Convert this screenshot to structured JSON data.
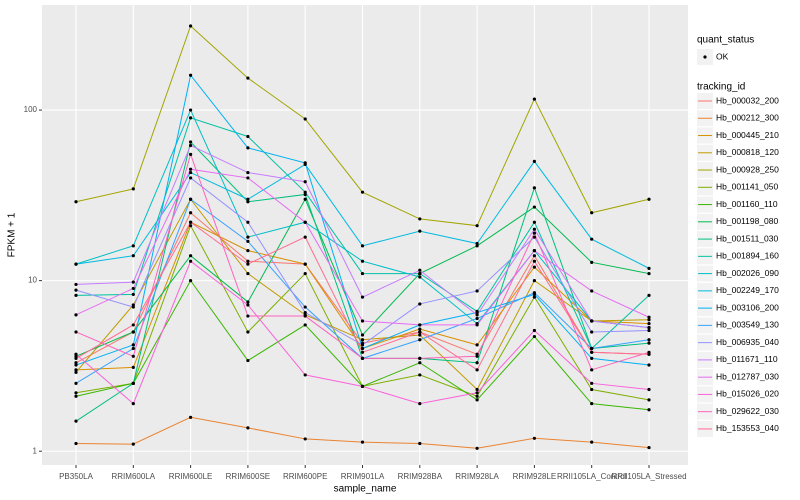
{
  "chart_data": {
    "type": "line",
    "x_label": "sample_name",
    "y_label": "FPKM + 1",
    "log_y": true,
    "grid": true,
    "ylim": [
      0.83,
      413
    ],
    "yticks": [
      1,
      10,
      100
    ],
    "categories": [
      "PB350LA",
      "RRIM600LA",
      "RRIM600LE",
      "RRIM600SE",
      "RRIM600PE",
      "RRIM901LA",
      "RRIM928BA",
      "RRIM928LA",
      "RRIM928LE",
      "RRII105LA_Control",
      "RRII105LA_Stressed"
    ],
    "shape_legend": {
      "title": "quant_status",
      "entries": [
        "OK"
      ]
    },
    "legend_title": "tracking_id",
    "series": [
      {
        "name": "Hb_000032_200",
        "color": "#F8766D",
        "values": [
          3.3,
          5.0,
          25,
          13,
          12.5,
          4.3,
          5.0,
          3.7,
          14,
          3.8,
          3.7
        ]
      },
      {
        "name": "Hb_000212_300",
        "color": "#EA8331",
        "values": [
          1.11,
          1.1,
          1.58,
          1.37,
          1.18,
          1.13,
          1.11,
          1.04,
          1.19,
          1.13,
          1.05
        ]
      },
      {
        "name": "Hb_000445_210",
        "color": "#D89000",
        "values": [
          3.0,
          3.1,
          22,
          15,
          12.5,
          4.0,
          5.2,
          4.2,
          12,
          5.8,
          5.6
        ]
      },
      {
        "name": "Hb_000818_120",
        "color": "#C09B00",
        "values": [
          2.9,
          7.2,
          30,
          11,
          6.3,
          4.5,
          4.8,
          2.3,
          10,
          5.8,
          5.9
        ]
      },
      {
        "name": "Hb_000928_250",
        "color": "#A3A500",
        "values": [
          29,
          34.5,
          311,
          154,
          88.6,
          33,
          23,
          21,
          116,
          25,
          30
        ]
      },
      {
        "name": "Hb_001141_050",
        "color": "#7CAE00",
        "values": [
          2.2,
          2.5,
          21,
          5.0,
          11,
          2.4,
          2.8,
          2.1,
          8.0,
          2.3,
          2.0
        ]
      },
      {
        "name": "Hb_001160_110",
        "color": "#39B600",
        "values": [
          2.1,
          2.5,
          10,
          3.4,
          5.5,
          2.4,
          3.3,
          2.0,
          4.7,
          1.9,
          1.75
        ]
      },
      {
        "name": "Hb_001198_080",
        "color": "#00BB4E",
        "values": [
          3.6,
          5.0,
          14,
          7.5,
          30,
          4.8,
          11,
          16,
          27,
          12.8,
          11
        ]
      },
      {
        "name": "Hb_001511_030",
        "color": "#00BF7D",
        "values": [
          1.5,
          2.5,
          65,
          29,
          32,
          3.5,
          3.5,
          3.3,
          35,
          4.0,
          4.3
        ]
      },
      {
        "name": "Hb_001894_160",
        "color": "#00C1A3",
        "values": [
          8.2,
          8.3,
          90,
          70,
          33,
          11,
          11,
          6.6,
          22,
          4.0,
          8.2
        ]
      },
      {
        "name": "Hb_002026_090",
        "color": "#00BFC4",
        "values": [
          12.5,
          16,
          100,
          18,
          22,
          13,
          10.5,
          5.6,
          15,
          5.8,
          5.3
        ]
      },
      {
        "name": "Hb_002249_170",
        "color": "#00BAE0",
        "values": [
          12.5,
          14,
          43,
          30,
          48,
          16,
          19.5,
          16.5,
          50,
          17.5,
          11.8
        ]
      },
      {
        "name": "Hb_003106_200",
        "color": "#00B0F6",
        "values": [
          3.2,
          4.2,
          160,
          60,
          49,
          4.0,
          5.5,
          6.5,
          8.3,
          3.5,
          3.2
        ]
      },
      {
        "name": "Hb_003549_130",
        "color": "#35A2FF",
        "values": [
          2.5,
          4.0,
          30,
          17,
          7.0,
          3.5,
          4.5,
          6.0,
          8.5,
          4.0,
          4.5
        ]
      },
      {
        "name": "Hb_006935_040",
        "color": "#9590FF",
        "values": [
          8.8,
          7.0,
          40,
          22,
          6.5,
          4.2,
          7.3,
          8.7,
          18,
          5.0,
          5.1
        ]
      },
      {
        "name": "Hb_011671_110",
        "color": "#C77CFF",
        "values": [
          9.5,
          9.8,
          62,
          43,
          38,
          8.0,
          11.5,
          6.3,
          20,
          5.8,
          5.3
        ]
      },
      {
        "name": "Hb_012787_030",
        "color": "#E76BF3",
        "values": [
          6.3,
          9.0,
          45,
          40,
          22,
          5.8,
          5.5,
          5.5,
          15,
          8.7,
          6.1
        ]
      },
      {
        "name": "Hb_015026_020",
        "color": "#FA62DB",
        "values": [
          3.7,
          1.9,
          13,
          7.2,
          2.8,
          2.4,
          1.9,
          2.2,
          5.1,
          2.5,
          2.3
        ]
      },
      {
        "name": "Hb_029622_030",
        "color": "#FF62BC",
        "values": [
          5.0,
          3.6,
          55,
          6.2,
          6.2,
          3.5,
          3.5,
          3.6,
          19,
          3.0,
          3.8
        ]
      },
      {
        "name": "Hb_153553_040",
        "color": "#FF6C91",
        "values": [
          3.5,
          5.5,
          22,
          12.5,
          18,
          3.8,
          5.0,
          3.0,
          13,
          3.8,
          3.7
        ]
      }
    ]
  }
}
